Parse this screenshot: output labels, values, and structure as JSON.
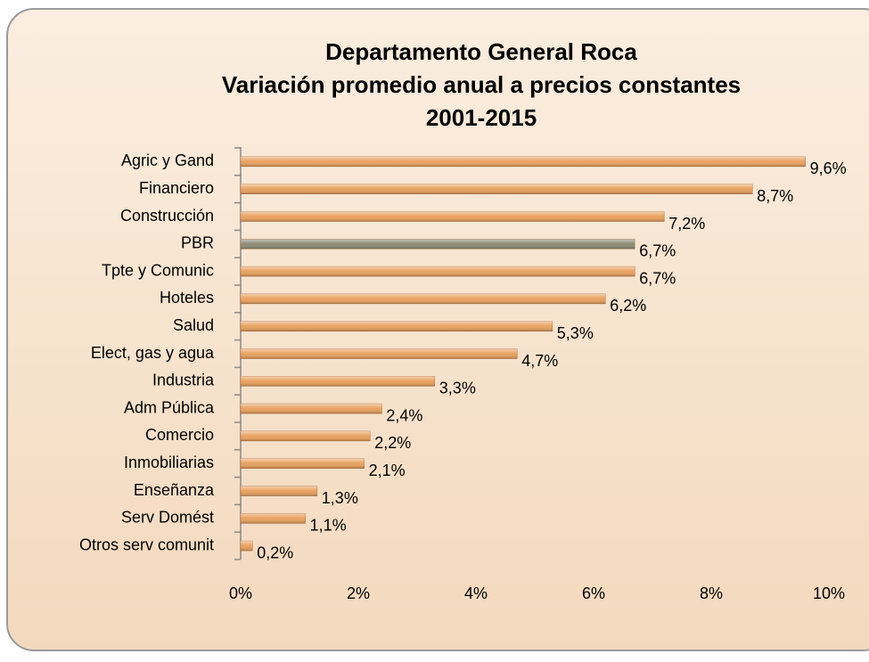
{
  "chart_data": {
    "type": "barh",
    "title": [
      "Departamento General Roca",
      "Variación promedio anual a precios constantes",
      "2001-2015"
    ],
    "categories": [
      "Agric y Gand",
      "Financiero",
      "Construcción",
      "PBR",
      "Tpte y Comunic",
      "Hoteles",
      "Salud",
      "Elect, gas y agua",
      "Industria",
      "Adm Pública",
      "Comercio",
      "Inmobiliarias",
      "Enseñanza",
      "Serv Domést",
      "Otros serv comunit"
    ],
    "values": [
      9.6,
      8.7,
      7.2,
      6.7,
      6.7,
      6.2,
      5.3,
      4.7,
      3.3,
      2.4,
      2.2,
      2.1,
      1.3,
      1.1,
      0.2
    ],
    "value_labels": [
      "9,6%",
      "8,7%",
      "7,2%",
      "6,7%",
      "6,7%",
      "6,2%",
      "5,3%",
      "4,7%",
      "3,3%",
      "2,4%",
      "2,2%",
      "2,1%",
      "1,3%",
      "1,1%",
      "0,2%"
    ],
    "colors": [
      "#e9a15e",
      "#e9a15e",
      "#e9a15e",
      "#8c8a76",
      "#e9a15e",
      "#e9a15e",
      "#e9a15e",
      "#e9a15e",
      "#e9a15e",
      "#e9a15e",
      "#e9a15e",
      "#e9a15e",
      "#e9a15e",
      "#e9a15e",
      "#e9a15e"
    ],
    "xlim": [
      0,
      10
    ],
    "xticks": [
      {
        "value": 0,
        "label": "0%"
      },
      {
        "value": 2,
        "label": "2%"
      },
      {
        "value": 4,
        "label": "4%"
      },
      {
        "value": 6,
        "label": "6%"
      },
      {
        "value": 8,
        "label": "8%"
      },
      {
        "value": 10,
        "label": "10%"
      }
    ]
  }
}
